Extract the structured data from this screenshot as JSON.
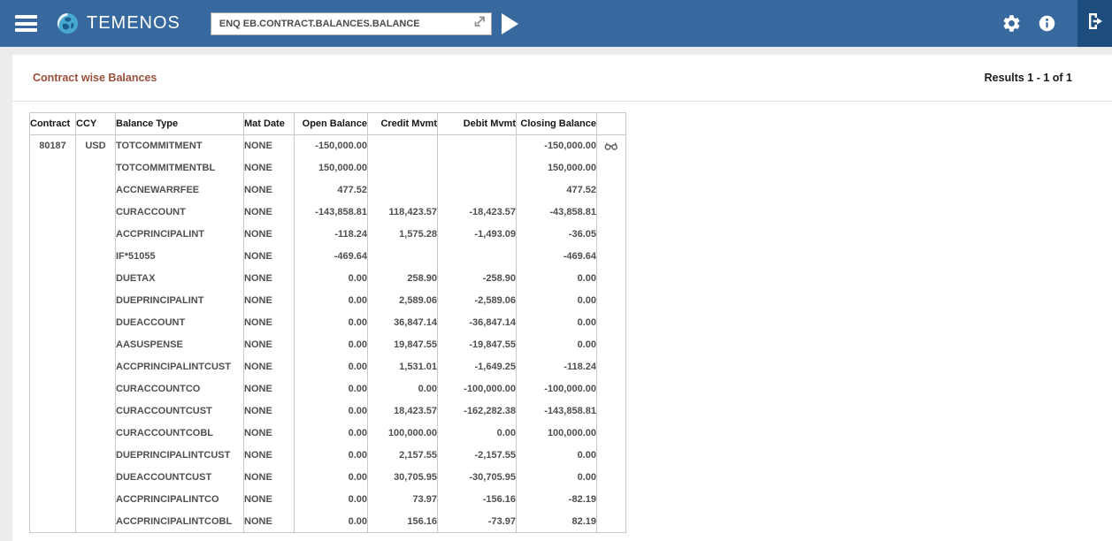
{
  "colors": {
    "topbar": "#37699e",
    "topbar_dark": "#1d4d7c",
    "title_text": "#9a4f3c",
    "table_border": "#c9c9c9",
    "cell_text": "#4f4f4f",
    "header_text": "#161616",
    "page_bg": "#ececec"
  },
  "topbar": {
    "logo_text": "TEMENOS",
    "command_input": {
      "value": "ENQ EB.CONTRACT.BALANCES.BALANCE"
    },
    "icons": {
      "menu": "hamburger-menu-icon",
      "globe": "temenos-globe-icon",
      "launch": "launch-icon",
      "run": "play-icon",
      "settings": "gear-icon",
      "about": "info-icon",
      "signoff": "sign-out-icon"
    }
  },
  "panel": {
    "title": "Contract wise Balances",
    "results_text": "Results 1 - 1 of 1",
    "menu_icon": "kebab-menu-icon"
  },
  "table": {
    "columns": [
      "Contract",
      "CCY",
      "Balance Type",
      "Mat Date",
      "Open Balance",
      "Credit Mvmt",
      "Debit Mvmt",
      "Closing Balance"
    ],
    "view_icon_row": 0,
    "view_icon": "binoculars-icon",
    "rows": [
      [
        "80187",
        "USD",
        "TOTCOMMITMENT",
        "NONE",
        "-150,000.00",
        "",
        "",
        "-150,000.00"
      ],
      [
        "",
        "",
        "TOTCOMMITMENTBL",
        "NONE",
        "150,000.00",
        "",
        "",
        "150,000.00"
      ],
      [
        "",
        "",
        "ACCNEWARRFEE",
        "NONE",
        "477.52",
        "",
        "",
        "477.52"
      ],
      [
        "",
        "",
        "CURACCOUNT",
        "NONE",
        "-143,858.81",
        "118,423.57",
        "-18,423.57",
        "-43,858.81"
      ],
      [
        "",
        "",
        "ACCPRINCIPALINT",
        "NONE",
        "-118.24",
        "1,575.28",
        "-1,493.09",
        "-36.05"
      ],
      [
        "",
        "",
        "IF*51055",
        "NONE",
        "-469.64",
        "",
        "",
        "-469.64"
      ],
      [
        "",
        "",
        "DUETAX",
        "NONE",
        "0.00",
        "258.90",
        "-258.90",
        "0.00"
      ],
      [
        "",
        "",
        "DUEPRINCIPALINT",
        "NONE",
        "0.00",
        "2,589.06",
        "-2,589.06",
        "0.00"
      ],
      [
        "",
        "",
        "DUEACCOUNT",
        "NONE",
        "0.00",
        "36,847.14",
        "-36,847.14",
        "0.00"
      ],
      [
        "",
        "",
        "AASUSPENSE",
        "NONE",
        "0.00",
        "19,847.55",
        "-19,847.55",
        "0.00"
      ],
      [
        "",
        "",
        "ACCPRINCIPALINTCUST",
        "NONE",
        "0.00",
        "1,531.01",
        "-1,649.25",
        "-118.24"
      ],
      [
        "",
        "",
        "CURACCOUNTCO",
        "NONE",
        "0.00",
        "0.00",
        "-100,000.00",
        "-100,000.00"
      ],
      [
        "",
        "",
        "CURACCOUNTCUST",
        "NONE",
        "0.00",
        "18,423.57",
        "-162,282.38",
        "-143,858.81"
      ],
      [
        "",
        "",
        "CURACCOUNTCOBL",
        "NONE",
        "0.00",
        "100,000.00",
        "0.00",
        "100,000.00"
      ],
      [
        "",
        "",
        "DUEPRINCIPALINTCUST",
        "NONE",
        "0.00",
        "2,157.55",
        "-2,157.55",
        "0.00"
      ],
      [
        "",
        "",
        "DUEACCOUNTCUST",
        "NONE",
        "0.00",
        "30,705.95",
        "-30,705.95",
        "0.00"
      ],
      [
        "",
        "",
        "ACCPRINCIPALINTCO",
        "NONE",
        "0.00",
        "73.97",
        "-156.16",
        "-82.19"
      ],
      [
        "",
        "",
        "ACCPRINCIPALINTCOBL",
        "NONE",
        "0.00",
        "156.16",
        "-73.97",
        "82.19"
      ]
    ]
  }
}
